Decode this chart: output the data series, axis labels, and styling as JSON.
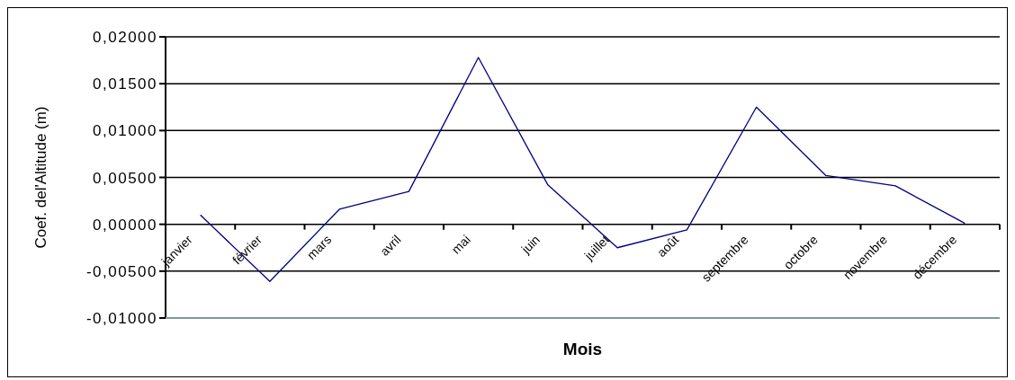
{
  "chart_data": {
    "type": "line",
    "xlabel": "Mois",
    "ylabel": "Coef. del'Altitude (m)",
    "categories": [
      "janvier",
      "février",
      "mars",
      "avril",
      "mai",
      "juin",
      "juillet",
      "août",
      "septembre",
      "octobre",
      "novembre",
      "décembre"
    ],
    "values": [
      0.001,
      -0.0061,
      0.0016,
      0.0035,
      0.0178,
      0.0042,
      -0.0025,
      -0.0006,
      0.0125,
      0.0052,
      0.0041,
      0.0001
    ],
    "color": "#000080",
    "ylim": [
      -0.01,
      0.02
    ],
    "yticks": [
      {
        "value": -0.01,
        "label": "-0,01000"
      },
      {
        "value": -0.005,
        "label": "-0,00500"
      },
      {
        "value": 0,
        "label": "0,00000"
      },
      {
        "value": 0.005,
        "label": "0,00500"
      },
      {
        "value": 0.01,
        "label": "0,01000"
      },
      {
        "value": 0.015,
        "label": "0,01500"
      },
      {
        "value": 0.02,
        "label": "0,02000"
      }
    ],
    "grid": "y",
    "marker": "none",
    "line_style": "solid"
  }
}
